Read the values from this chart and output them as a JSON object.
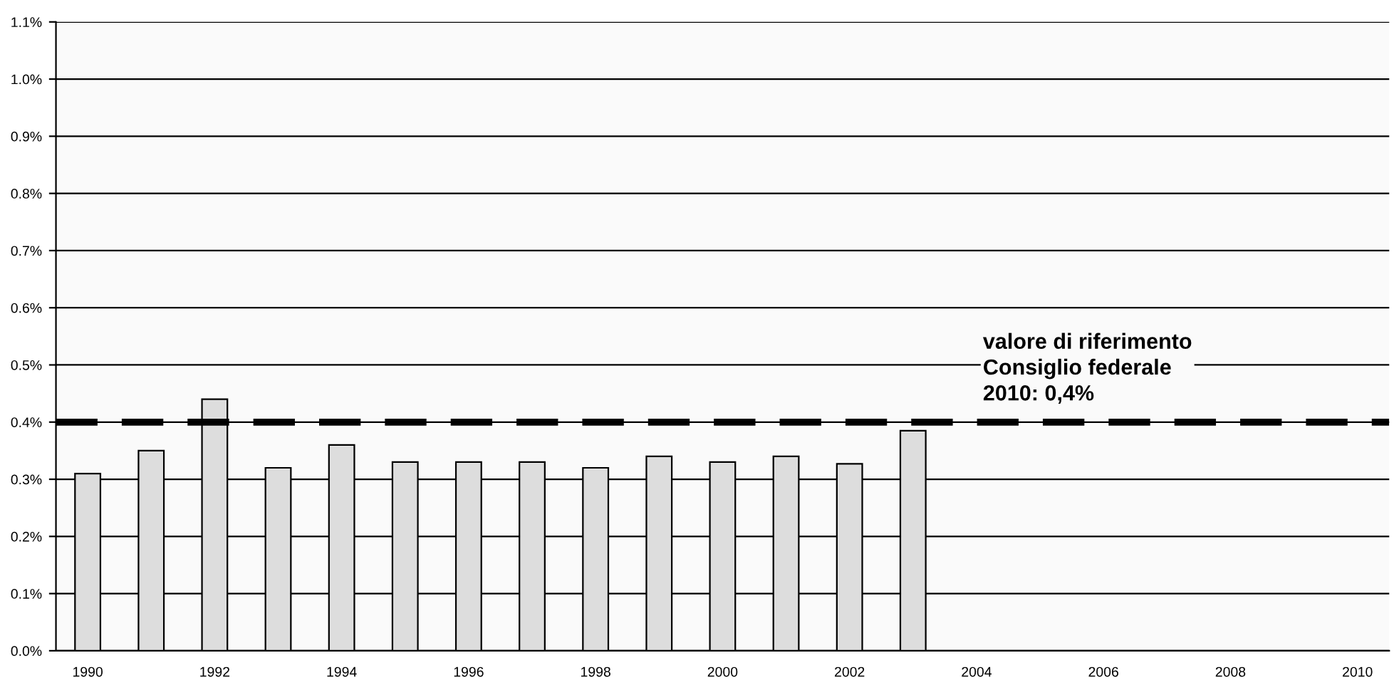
{
  "chart_data": {
    "type": "bar",
    "categories": [
      "1990",
      null,
      "1992",
      null,
      "1994",
      null,
      "1996",
      null,
      "1998",
      null,
      "2000",
      null,
      "2002",
      null,
      "2004",
      null,
      "2006",
      null,
      "2008",
      null,
      "2010"
    ],
    "values": [
      0.31,
      0.35,
      0.44,
      0.32,
      0.36,
      0.33,
      0.33,
      0.33,
      0.32,
      0.34,
      0.33,
      0.34,
      0.327,
      0.385,
      null,
      null,
      null,
      null,
      null,
      null,
      null
    ],
    "color": "#dddddd",
    "ylim": [
      0,
      1.1
    ],
    "yticks": [
      {
        "value": 0,
        "label": "0.0%"
      },
      {
        "value": 0.1,
        "label": "0.1%"
      },
      {
        "value": 0.2,
        "label": "0.2%"
      },
      {
        "value": 0.3,
        "label": "0.3%"
      },
      {
        "value": 0.4,
        "label": "0.4%"
      },
      {
        "value": 0.5,
        "label": "0.5%"
      },
      {
        "value": 0.6,
        "label": "0.6%"
      },
      {
        "value": 0.7,
        "label": "0.7%"
      },
      {
        "value": 0.8,
        "label": "0.8%"
      },
      {
        "value": 0.9,
        "label": "0.9%"
      },
      {
        "value": 1.0,
        "label": "1.0%"
      },
      {
        "value": 1.1,
        "label": "1.1%"
      }
    ],
    "grid": "y",
    "ref_lines": [
      {
        "axis": "y",
        "value": 0.4,
        "label": "valore di riferimento\nConsiglio federale\n2010: 0,4%",
        "color": "#000000",
        "line_style": "dashed"
      }
    ]
  }
}
